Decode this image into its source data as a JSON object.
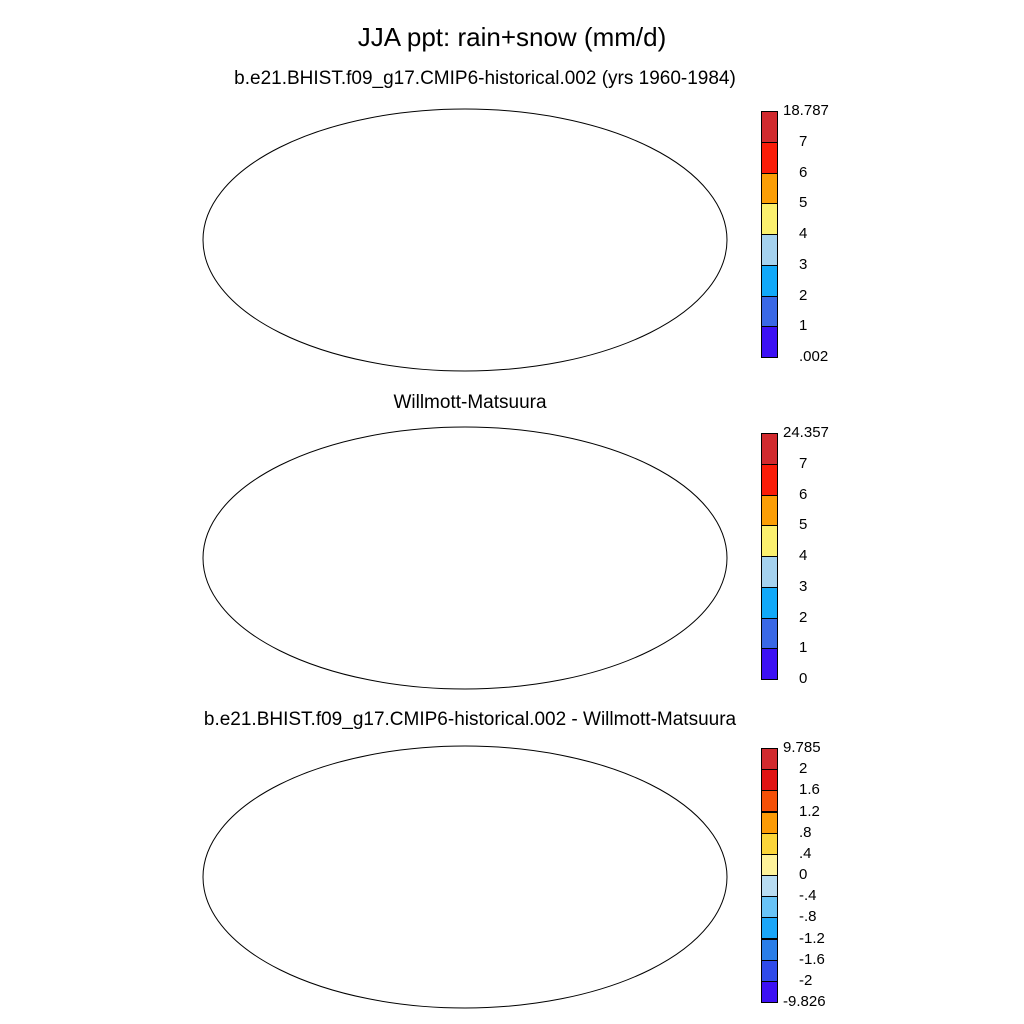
{
  "title": "JJA ppt: rain+snow (mm/d)",
  "panels": [
    {
      "subtitle": "b.e21.BHIST.f09_g17.CMIP6-historical.002 (yrs 1960-1984)",
      "colorbar": {
        "labels": [
          "18.787",
          "7",
          "6",
          "5",
          "4",
          "3",
          "2",
          "1",
          ".002"
        ],
        "colors": [
          "#d12a2e",
          "#fa1c08",
          "#fb9e06",
          "#fbf06e",
          "#a5d2ef",
          "#11a9f9",
          "#3a68e6",
          "#3c10f4"
        ]
      }
    },
    {
      "subtitle": "Willmott-Matsuura",
      "colorbar": {
        "labels": [
          "24.357",
          "7",
          "6",
          "5",
          "4",
          "3",
          "2",
          "1",
          "0"
        ],
        "colors": [
          "#d12a2e",
          "#fa1c08",
          "#fb9e06",
          "#fbf06e",
          "#a5d2ef",
          "#11a9f9",
          "#3a68e6",
          "#3c10f4"
        ]
      }
    },
    {
      "subtitle": "b.e21.BHIST.f09_g17.CMIP6-historical.002 - Willmott-Matsuura",
      "colorbar": {
        "labels": [
          "9.785",
          "2",
          "1.6",
          "1.2",
          ".8",
          ".4",
          "0",
          "-.4",
          "-.8",
          "-1.2",
          "-1.6",
          "-2",
          "-9.826"
        ],
        "colors": [
          "#d12a2e",
          "#e11212",
          "#f55007",
          "#fb9b06",
          "#fbd53a",
          "#fef29a",
          "#b8dcf2",
          "#68c3f6",
          "#1ba6f8",
          "#2a7ee9",
          "#2f4bea",
          "#3c10f4"
        ]
      }
    }
  ]
}
